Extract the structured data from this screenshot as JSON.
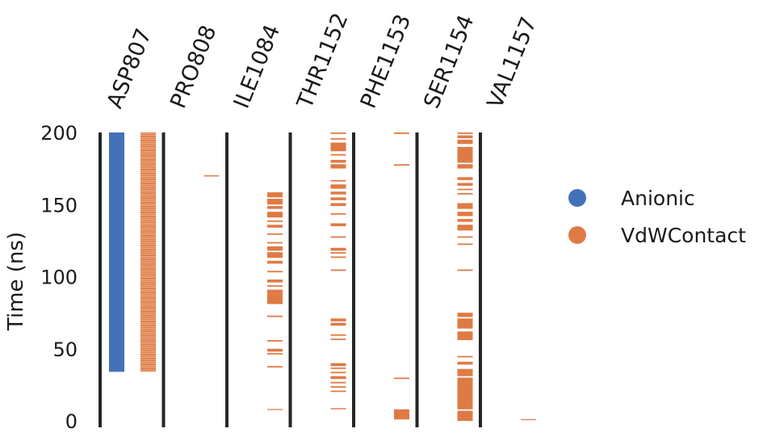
{
  "chart_data": {
    "type": "event_raster",
    "ylabel": "Time (ns)",
    "ylim": [
      0,
      200
    ],
    "yticks": [
      0,
      50,
      100,
      150,
      200
    ],
    "grid": false,
    "legend_position": "right",
    "categories": [
      "ASP807",
      "PRO808",
      "ILE1084",
      "THR1152",
      "PHE1153",
      "SER1154",
      "VAL1157"
    ],
    "series": [
      {
        "name": "Anionic",
        "color": "#4472b8"
      },
      {
        "name": "VdWContact",
        "color": "#e07a45"
      }
    ],
    "events": [
      {
        "residue": "ASP807",
        "type": "Anionic",
        "intervals": [
          [
            34,
            200
          ]
        ]
      },
      {
        "residue": "ASP807",
        "type": "VdWContact",
        "intervals": [
          [
            34,
            200
          ]
        ],
        "pattern": "dense"
      },
      {
        "residue": "PRO808",
        "type": "VdWContact",
        "intervals": [
          [
            169.5,
            170.3
          ]
        ]
      },
      {
        "residue": "ILE1084",
        "type": "VdWContact",
        "intervals": [
          [
            7.5,
            8.2
          ],
          [
            37,
            38
          ],
          [
            46,
            47
          ],
          [
            48,
            50
          ],
          [
            55,
            56
          ],
          [
            72,
            73
          ],
          [
            81,
            88
          ],
          [
            88,
            91
          ],
          [
            93,
            94
          ],
          [
            96,
            98
          ],
          [
            103,
            104
          ],
          [
            109,
            111
          ],
          [
            113,
            117
          ],
          [
            118,
            121
          ],
          [
            123,
            124
          ],
          [
            129,
            130
          ],
          [
            134,
            136
          ],
          [
            138,
            139
          ],
          [
            141,
            145
          ],
          [
            147,
            149
          ],
          [
            150,
            154
          ],
          [
            155,
            158.5
          ]
        ]
      },
      {
        "residue": "THR1152",
        "type": "VdWContact",
        "intervals": [
          [
            8,
            8.8
          ],
          [
            20,
            21
          ],
          [
            23,
            24
          ],
          [
            26,
            27
          ],
          [
            29,
            31
          ],
          [
            33,
            34
          ],
          [
            36,
            37
          ],
          [
            38,
            40
          ],
          [
            56,
            57
          ],
          [
            59,
            60
          ],
          [
            66,
            68
          ],
          [
            69,
            71
          ],
          [
            104,
            105
          ],
          [
            113,
            114
          ],
          [
            116,
            117
          ],
          [
            118,
            120
          ],
          [
            127,
            128
          ],
          [
            135,
            137
          ],
          [
            143,
            144
          ],
          [
            149,
            151
          ],
          [
            153,
            155
          ],
          [
            157,
            159
          ],
          [
            161,
            164
          ],
          [
            166,
            167
          ],
          [
            175,
            178
          ],
          [
            179,
            181
          ],
          [
            184,
            185
          ],
          [
            187,
            193
          ],
          [
            195,
            196
          ],
          [
            199,
            200
          ]
        ]
      },
      {
        "residue": "PHE1153",
        "type": "VdWContact",
        "intervals": [
          [
            1,
            8
          ],
          [
            29,
            30
          ],
          [
            177,
            178
          ],
          [
            199,
            200
          ]
        ]
      },
      {
        "residue": "SER1154",
        "type": "VdWContact",
        "intervals": [
          [
            0,
            7
          ],
          [
            8,
            30
          ],
          [
            31,
            36
          ],
          [
            39,
            41
          ],
          [
            44,
            45
          ],
          [
            56,
            62
          ],
          [
            64,
            71
          ],
          [
            72,
            75
          ],
          [
            104,
            105
          ],
          [
            122,
            123
          ],
          [
            127,
            128
          ],
          [
            132,
            136
          ],
          [
            138,
            140
          ],
          [
            142,
            145
          ],
          [
            147,
            151
          ],
          [
            157,
            158
          ],
          [
            160,
            161
          ],
          [
            163,
            165
          ],
          [
            167,
            169
          ],
          [
            175,
            178
          ],
          [
            179,
            190
          ],
          [
            192,
            195
          ],
          [
            196,
            198
          ],
          [
            199,
            200
          ]
        ]
      },
      {
        "residue": "VAL1157",
        "type": "VdWContact",
        "intervals": [
          [
            0.5,
            1.2
          ]
        ]
      }
    ]
  }
}
